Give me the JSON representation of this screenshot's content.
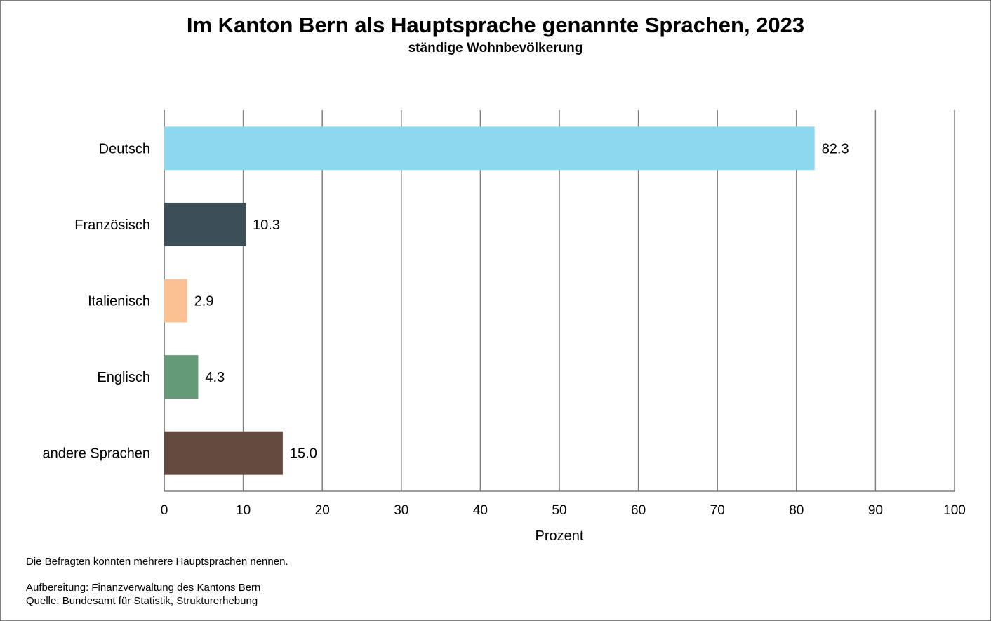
{
  "title": "Im Kanton Bern als Hauptsprache genannte Sprachen, 2023",
  "subtitle": "ständige Wohnbevölkerung",
  "notes": {
    "note1": "Die Befragten konnten mehrere Hauptsprachen nennen.",
    "note2": "Aufbereitung: Finanzverwaltung des Kantons Bern",
    "note3": "Quelle: Bundesamt für Statistik, Strukturerhebung"
  },
  "chart_data": {
    "type": "bar",
    "orientation": "horizontal",
    "title": "Im Kanton Bern als Hauptsprache genannte Sprachen, 2023",
    "subtitle": "ständige Wohnbevölkerung",
    "categories": [
      "Deutsch",
      "Französisch",
      "Italienisch",
      "Englisch",
      "andere Sprachen"
    ],
    "values": [
      82.3,
      10.3,
      2.9,
      4.3,
      15.0
    ],
    "value_labels": [
      "82.3",
      "10.3",
      "2.9",
      "4.3",
      "15.0"
    ],
    "colors": [
      "#8dd8ee",
      "#3c4f59",
      "#fbc192",
      "#659a79",
      "#634b40"
    ],
    "xlabel": "Prozent",
    "ylabel": "",
    "xlim": [
      0,
      100
    ],
    "xticks": [
      0,
      10,
      20,
      30,
      40,
      50,
      60,
      70,
      80,
      90,
      100
    ],
    "grid": "vertical",
    "legend": "none"
  }
}
